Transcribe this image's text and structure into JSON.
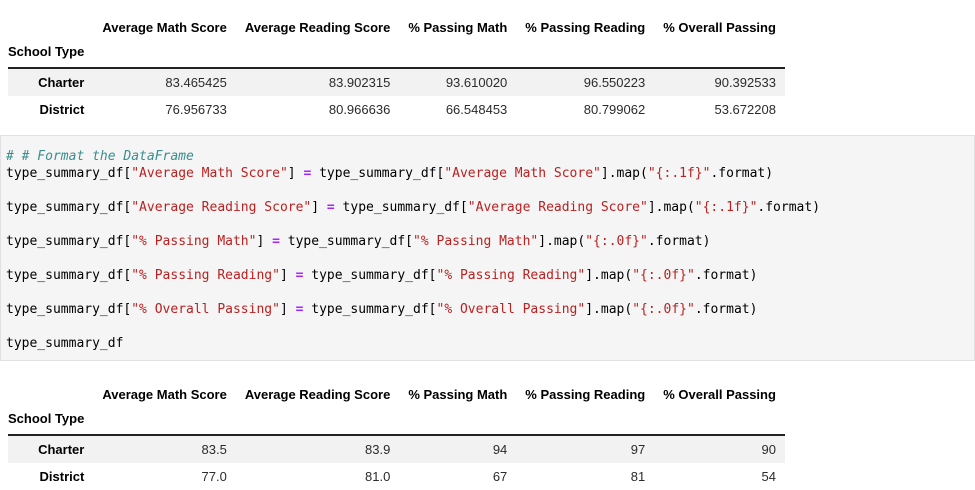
{
  "colors": {
    "code_cell_background": "#f5f5f5",
    "code_cell_border": "#e1e1e1",
    "row_stripe": "#f2f2f2",
    "comment": "#3a8e8e",
    "string": "#ba2121",
    "operator": "#aa22ff",
    "thead_border": "#222222"
  },
  "tables": [
    {
      "columns": [
        "Average Math Score",
        "Average Reading Score",
        "% Passing Math",
        "% Passing Reading",
        "% Overall Passing"
      ],
      "index_label": "School Type",
      "rows": [
        {
          "label": "Charter",
          "values": [
            "83.465425",
            "83.902315",
            "93.610020",
            "96.550223",
            "90.392533"
          ]
        },
        {
          "label": "District",
          "values": [
            "76.956733",
            "80.966636",
            "66.548453",
            "80.799062",
            "53.672208"
          ]
        }
      ]
    },
    {
      "columns": [
        "Average Math Score",
        "Average Reading Score",
        "% Passing Math",
        "% Passing Reading",
        "% Overall Passing"
      ],
      "index_label": "School Type",
      "rows": [
        {
          "label": "Charter",
          "values": [
            "83.5",
            "83.9",
            "94",
            "97",
            "90"
          ]
        },
        {
          "label": "District",
          "values": [
            "77.0",
            "81.0",
            "67",
            "81",
            "54"
          ]
        }
      ]
    }
  ],
  "code": {
    "lines": [
      [
        {
          "t": "comment",
          "v": "# # Format the DataFrame"
        }
      ],
      [
        {
          "t": "plain",
          "v": "type_summary_df["
        },
        {
          "t": "str",
          "v": "\"Average Math Score\""
        },
        {
          "t": "plain",
          "v": "] "
        },
        {
          "t": "op",
          "v": "="
        },
        {
          "t": "plain",
          "v": " type_summary_df["
        },
        {
          "t": "str",
          "v": "\"Average Math Score\""
        },
        {
          "t": "plain",
          "v": "].map("
        },
        {
          "t": "str",
          "v": "\"{:.1f}\""
        },
        {
          "t": "plain",
          "v": ".format)"
        }
      ],
      [],
      [
        {
          "t": "plain",
          "v": "type_summary_df["
        },
        {
          "t": "str",
          "v": "\"Average Reading Score\""
        },
        {
          "t": "plain",
          "v": "] "
        },
        {
          "t": "op",
          "v": "="
        },
        {
          "t": "plain",
          "v": " type_summary_df["
        },
        {
          "t": "str",
          "v": "\"Average Reading Score\""
        },
        {
          "t": "plain",
          "v": "].map("
        },
        {
          "t": "str",
          "v": "\"{:.1f}\""
        },
        {
          "t": "plain",
          "v": ".format)"
        }
      ],
      [],
      [
        {
          "t": "plain",
          "v": "type_summary_df["
        },
        {
          "t": "str",
          "v": "\"% Passing Math\""
        },
        {
          "t": "plain",
          "v": "] "
        },
        {
          "t": "op",
          "v": "="
        },
        {
          "t": "plain",
          "v": " type_summary_df["
        },
        {
          "t": "str",
          "v": "\"% Passing Math\""
        },
        {
          "t": "plain",
          "v": "].map("
        },
        {
          "t": "str",
          "v": "\"{:.0f}\""
        },
        {
          "t": "plain",
          "v": ".format)"
        }
      ],
      [],
      [
        {
          "t": "plain",
          "v": "type_summary_df["
        },
        {
          "t": "str",
          "v": "\"% Passing Reading\""
        },
        {
          "t": "plain",
          "v": "] "
        },
        {
          "t": "op",
          "v": "="
        },
        {
          "t": "plain",
          "v": " type_summary_df["
        },
        {
          "t": "str",
          "v": "\"% Passing Reading\""
        },
        {
          "t": "plain",
          "v": "].map("
        },
        {
          "t": "str",
          "v": "\"{:.0f}\""
        },
        {
          "t": "plain",
          "v": ".format)"
        }
      ],
      [],
      [
        {
          "t": "plain",
          "v": "type_summary_df["
        },
        {
          "t": "str",
          "v": "\"% Overall Passing\""
        },
        {
          "t": "plain",
          "v": "] "
        },
        {
          "t": "op",
          "v": "="
        },
        {
          "t": "plain",
          "v": " type_summary_df["
        },
        {
          "t": "str",
          "v": "\"% Overall Passing\""
        },
        {
          "t": "plain",
          "v": "].map("
        },
        {
          "t": "str",
          "v": "\"{:.0f}\""
        },
        {
          "t": "plain",
          "v": ".format)"
        }
      ],
      [],
      [
        {
          "t": "plain",
          "v": "type_summary_df"
        }
      ]
    ]
  }
}
